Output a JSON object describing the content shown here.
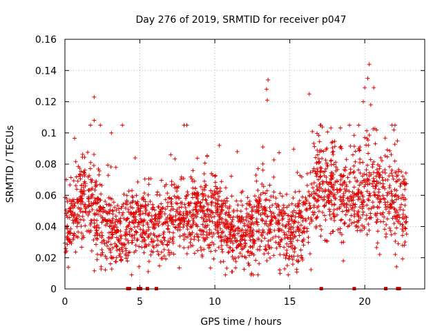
{
  "chart_data": {
    "type": "scatter",
    "title": "Day 276 of 2019, SRMTID for receiver p047",
    "xlabel": "GPS time / hours",
    "ylabel": "SRMTID / TECUs",
    "xlim": [
      0,
      24
    ],
    "ylim": [
      0,
      0.16
    ],
    "xticks": [
      0,
      5,
      10,
      15,
      20
    ],
    "xtick_labels": [
      "0",
      "5",
      "10",
      "15",
      "20"
    ],
    "yticks": [
      0,
      0.02,
      0.04,
      0.06,
      0.08,
      0.1,
      0.12,
      0.14,
      0.16
    ],
    "ytick_labels": [
      "0",
      "0.02",
      "0.04",
      "0.06",
      "0.08",
      "0.1",
      "0.12",
      "0.14",
      "0.16"
    ],
    "grid": true,
    "marker": "+",
    "color": "#e00000",
    "baseline_gap_times": [
      4.2,
      4.3,
      4.9,
      5.0,
      5.05,
      5.5,
      6.1,
      17.1,
      19.3,
      21.4,
      22.2,
      22.3
    ],
    "outliers": [
      {
        "x": 1.95,
        "y": 0.123
      },
      {
        "x": 1.95,
        "y": 0.108
      },
      {
        "x": 3.1,
        "y": 0.1
      },
      {
        "x": 13.55,
        "y": 0.134
      },
      {
        "x": 13.45,
        "y": 0.128
      },
      {
        "x": 13.5,
        "y": 0.121
      },
      {
        "x": 16.3,
        "y": 0.125
      },
      {
        "x": 20.3,
        "y": 0.144
      },
      {
        "x": 20.2,
        "y": 0.135
      },
      {
        "x": 20.0,
        "y": 0.129
      },
      {
        "x": 20.6,
        "y": 0.129
      },
      {
        "x": 19.9,
        "y": 0.12
      },
      {
        "x": 20.4,
        "y": 0.118
      },
      {
        "x": 10.3,
        "y": 0.092
      },
      {
        "x": 11.5,
        "y": 0.088
      },
      {
        "x": 12.45,
        "y": 0.01
      },
      {
        "x": 14.35,
        "y": 0.01
      }
    ],
    "envelope": {
      "hours": [
        0,
        1,
        2,
        3,
        4,
        5,
        6,
        7,
        8,
        9,
        10,
        11,
        12,
        13,
        14,
        15,
        16,
        17,
        18,
        19,
        20,
        21,
        22,
        22.8
      ],
      "mean": [
        0.038,
        0.055,
        0.05,
        0.037,
        0.038,
        0.042,
        0.04,
        0.043,
        0.045,
        0.046,
        0.048,
        0.037,
        0.033,
        0.045,
        0.042,
        0.035,
        0.045,
        0.068,
        0.062,
        0.058,
        0.068,
        0.06,
        0.057,
        0.052
      ],
      "spread": [
        0.012,
        0.017,
        0.018,
        0.015,
        0.014,
        0.013,
        0.012,
        0.014,
        0.014,
        0.014,
        0.015,
        0.013,
        0.011,
        0.016,
        0.016,
        0.013,
        0.016,
        0.019,
        0.018,
        0.017,
        0.021,
        0.019,
        0.017,
        0.014
      ]
    },
    "n_points": 2300,
    "x_end": 22.8
  }
}
